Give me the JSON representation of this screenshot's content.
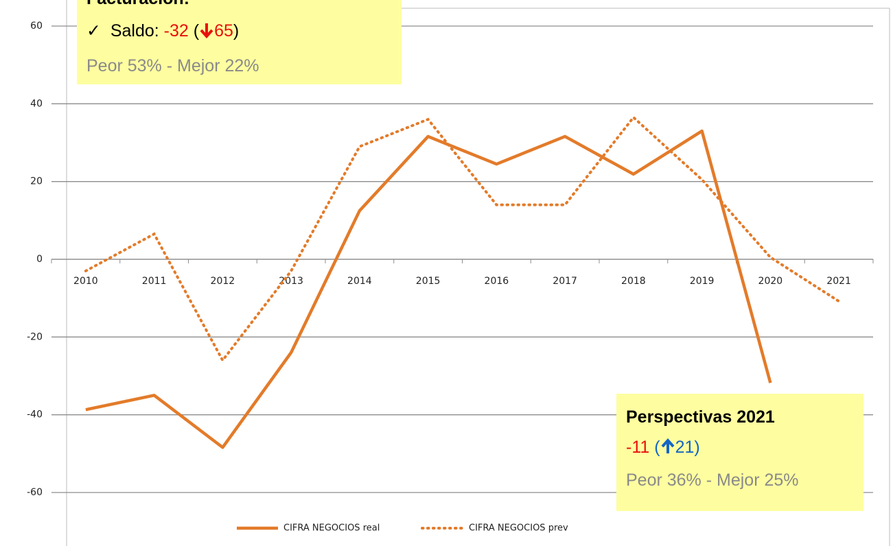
{
  "chart_data": {
    "type": "line",
    "categories": [
      "2010",
      "2011",
      "2012",
      "2013",
      "2014",
      "2015",
      "2016",
      "2017",
      "2018",
      "2019",
      "2020",
      "2021"
    ],
    "series": [
      {
        "name": "CIFRA NEGOCIOS real",
        "color": "#e37b2a",
        "style": "solid",
        "values": [
          -38.7,
          -35,
          -48.4,
          -24,
          12.5,
          31.6,
          24.5,
          31.6,
          21.9,
          33,
          -31.8,
          null
        ]
      },
      {
        "name": "CIFRA NEGOCIOS prev",
        "color": "#e37b2a",
        "style": "dotted",
        "values": [
          -3,
          6.5,
          -26,
          -3,
          29,
          36,
          14,
          14,
          36.5,
          20.5,
          0.5,
          -10.8
        ]
      }
    ],
    "ylim": [
      -60,
      60
    ],
    "yticks": [
      -60,
      -40,
      -20,
      0,
      20,
      40,
      60
    ],
    "grid": true,
    "legend": "bottom",
    "annotations": [
      {
        "title": "Facturación:",
        "parts": [
          "✓  Saldo: ",
          "-32",
          " (",
          "65",
          ")"
        ],
        "detail": "Peor 53% - Mejor 22%"
      },
      {
        "title": "Perspectivas 2021",
        "parts": [
          "-11",
          " (",
          "21",
          ")"
        ],
        "detail": "Peor 36% - Mejor 25%"
      }
    ]
  }
}
